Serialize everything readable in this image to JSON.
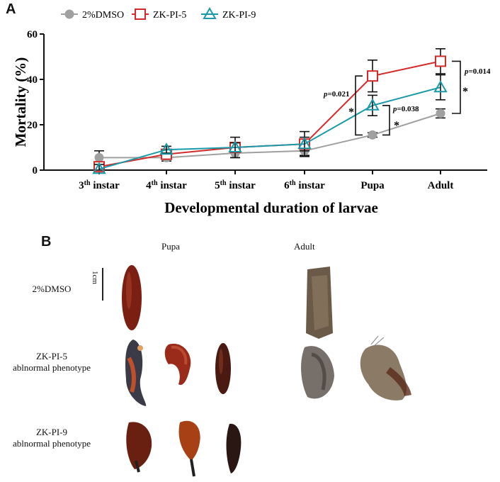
{
  "panels": {
    "a_label": "A",
    "b_label": "B"
  },
  "chart_data": {
    "type": "line",
    "title": "",
    "xlabel": "Developmental duration of larvae",
    "ylabel": "Mortality (%)",
    "ylim": [
      0,
      60
    ],
    "yticks": [
      "0",
      "20",
      "40",
      "60"
    ],
    "categories": [
      {
        "base": "3",
        "sup": "th",
        "rest": " instar"
      },
      {
        "base": "4",
        "sup": "th",
        "rest": " instar"
      },
      {
        "base": "5",
        "sup": "th",
        "rest": " instar"
      },
      {
        "base": "6",
        "sup": "th",
        "rest": " instar"
      },
      {
        "base": "Pupa",
        "sup": "",
        "rest": ""
      },
      {
        "base": "Adult",
        "sup": "",
        "rest": ""
      }
    ],
    "legend_position": "top",
    "series": [
      {
        "name": "2%DMSO",
        "color": "#a0a0a0",
        "marker": "circle",
        "values": [
          5.5,
          5.5,
          7.5,
          8.5,
          15.5,
          25
        ],
        "errors": [
          3,
          1.5,
          2,
          2,
          1,
          2
        ]
      },
      {
        "name": "ZK-PI-5",
        "color": "#d42a2a",
        "marker": "square",
        "values": [
          1.5,
          7,
          10,
          11.5,
          41.5,
          48
        ],
        "errors": [
          2,
          2,
          4.5,
          5.5,
          7,
          5.5
        ]
      },
      {
        "name": "ZK-PI-9",
        "color": "#1a9aa8",
        "marker": "triangle",
        "values": [
          0.5,
          9,
          10,
          11.5,
          28.5,
          36.5
        ],
        "errors": [
          2,
          1.5,
          2,
          3,
          4.5,
          5.5
        ]
      }
    ],
    "annotations": [
      {
        "text": "p=0.021",
        "star": "*",
        "group": "Pupa"
      },
      {
        "text": "p=0.038",
        "star": "*",
        "group": "Pupa"
      },
      {
        "text": "p=0.014",
        "star": "*",
        "group": "Adult"
      }
    ]
  },
  "photos": {
    "col_pupa": "Pupa",
    "col_adult": "Adult",
    "scale": "1cm",
    "rows": [
      {
        "line1": "2%DMSO",
        "line2": ""
      },
      {
        "line1": "ZK-PI-5",
        "line2": "ablnormal phenotype"
      },
      {
        "line1": "ZK-PI-9",
        "line2": "ablnormal phenotype"
      }
    ]
  }
}
